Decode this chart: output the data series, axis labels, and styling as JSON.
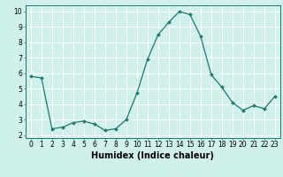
{
  "x": [
    0,
    1,
    2,
    3,
    4,
    5,
    6,
    7,
    8,
    9,
    10,
    11,
    12,
    13,
    14,
    15,
    16,
    17,
    18,
    19,
    20,
    21,
    22,
    23
  ],
  "y": [
    5.8,
    5.7,
    2.4,
    2.5,
    2.8,
    2.9,
    2.7,
    2.3,
    2.4,
    3.0,
    4.7,
    6.9,
    8.5,
    9.3,
    10.0,
    9.8,
    8.4,
    5.9,
    5.1,
    4.1,
    3.6,
    3.9,
    3.7,
    4.5
  ],
  "line_color": "#1a7a6e",
  "marker": "D",
  "marker_size": 2.0,
  "bg_color": "#cff0eb",
  "grid_color": "#ffffff",
  "xlabel": "Humidex (Indice chaleur)",
  "xlim": [
    -0.5,
    23.5
  ],
  "ylim": [
    1.8,
    10.4
  ],
  "xticks": [
    0,
    1,
    2,
    3,
    4,
    5,
    6,
    7,
    8,
    9,
    10,
    11,
    12,
    13,
    14,
    15,
    16,
    17,
    18,
    19,
    20,
    21,
    22,
    23
  ],
  "yticks": [
    2,
    3,
    4,
    5,
    6,
    7,
    8,
    9,
    10
  ],
  "tick_fontsize": 5.5,
  "xlabel_fontsize": 7.0
}
